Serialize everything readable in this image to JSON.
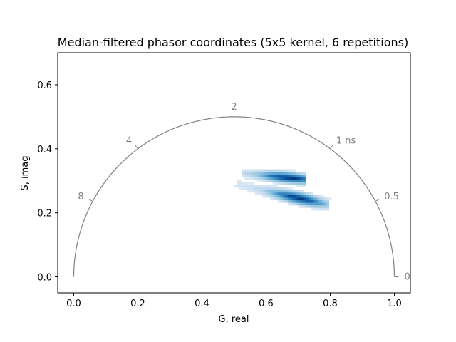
{
  "chart_data": {
    "type": "heatmap",
    "title": "Median-filtered phasor coordinates (5x5 kernel, 6 repetitions)",
    "xlabel": "G, real",
    "ylabel": "S, imag",
    "xlim": [
      -0.05,
      1.05
    ],
    "ylim": [
      -0.05,
      0.7
    ],
    "x_ticks": [
      0.0,
      0.2,
      0.4,
      0.6,
      0.8,
      1.0
    ],
    "x_tick_labels": [
      "0.0",
      "0.2",
      "0.4",
      "0.6",
      "0.8",
      "1.0"
    ],
    "y_ticks": [
      0.0,
      0.2,
      0.4,
      0.6
    ],
    "y_tick_labels": [
      "0.0",
      "0.2",
      "0.4",
      "0.6"
    ],
    "grid": false,
    "colormap": "Blues",
    "universal_circle": {
      "center": [
        0.5,
        0.0
      ],
      "radius": 0.5,
      "color": "#808080",
      "lifetime_labels": [
        {
          "label": "0",
          "g": 1.0,
          "s": 0.0
        },
        {
          "label": "0.5",
          "g": 0.941,
          "s": 0.236
        },
        {
          "label": "1 ns",
          "g": 0.8,
          "s": 0.4
        },
        {
          "label": "2",
          "g": 0.5,
          "s": 0.5
        },
        {
          "label": "4",
          "g": 0.2,
          "s": 0.4
        },
        {
          "label": "8",
          "g": 0.059,
          "s": 0.236
        }
      ]
    },
    "clusters": [
      {
        "g_start": 0.53,
        "s_start": 0.325,
        "g_end": 0.72,
        "s_end": 0.305,
        "width": 0.028,
        "peak_g": 0.67,
        "peak_s": 0.31
      },
      {
        "g_start": 0.51,
        "s_start": 0.29,
        "g_end": 0.79,
        "s_end": 0.225,
        "width": 0.03,
        "peak_g": 0.7,
        "peak_s": 0.245
      }
    ]
  }
}
